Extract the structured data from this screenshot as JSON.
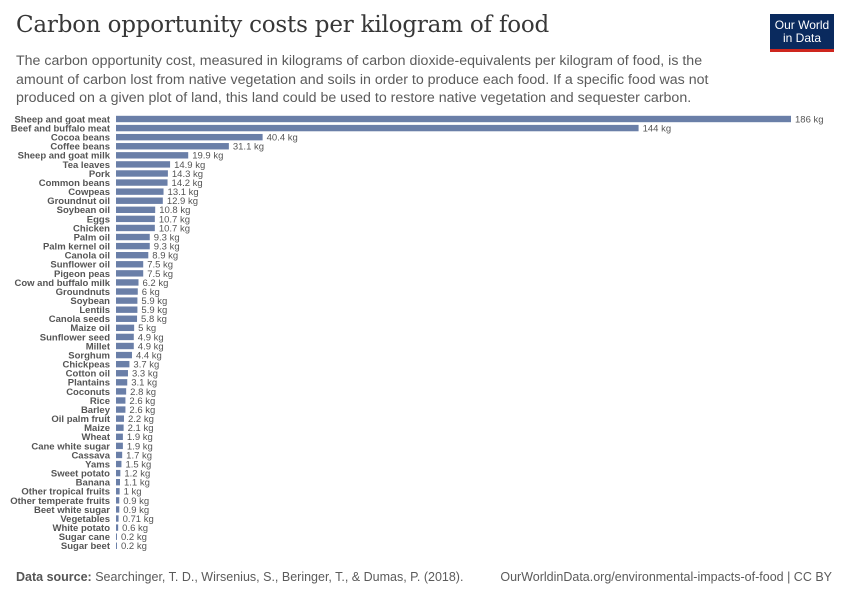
{
  "header": {
    "title": "Carbon opportunity costs per kilogram of food",
    "subtitle": "The carbon opportunity cost, measured in kilograms of carbon dioxide-equivalents per kilogram of food, is the amount of carbon lost from native vegetation and soils in order to produce each food. If a specific food was not produced on a given plot of land, this land could be used to restore native vegetation and sequester carbon.",
    "logo_line1": "Our World",
    "logo_line2": "in Data"
  },
  "footer": {
    "source_label": "Data source:",
    "source_text": "Searchinger, T. D., Wirsenius, S., Beringer, T., & Dumas, P. (2018).",
    "credit": "OurWorldinData.org/environmental-impacts-of-food | CC BY"
  },
  "colors": {
    "bar": "#6a7fa8",
    "logo_bg": "#0a2a5e",
    "logo_accent": "#ce261e"
  },
  "chart_data": {
    "type": "bar",
    "orientation": "horizontal",
    "categories": [
      "Sheep and goat meat",
      "Beef and buffalo meat",
      "Cocoa beans",
      "Coffee beans",
      "Sheep and goat milk",
      "Tea leaves",
      "Pork",
      "Common beans",
      "Cowpeas",
      "Groundnut oil",
      "Soybean oil",
      "Eggs",
      "Chicken",
      "Palm oil",
      "Palm kernel oil",
      "Canola oil",
      "Sunflower oil",
      "Pigeon peas",
      "Cow and buffalo milk",
      "Groundnuts",
      "Soybean",
      "Lentils",
      "Canola seeds",
      "Maize oil",
      "Sunflower seed",
      "Millet",
      "Sorghum",
      "Chickpeas",
      "Cotton oil",
      "Plantains",
      "Coconuts",
      "Rice",
      "Barley",
      "Oil palm fruit",
      "Maize",
      "Wheat",
      "Cane white sugar",
      "Cassava",
      "Yams",
      "Sweet potato",
      "Banana",
      "Other tropical fruits",
      "Other temperate fruits",
      "Beet white sugar",
      "Vegetables",
      "White potato",
      "Sugar cane",
      "Sugar beet"
    ],
    "values": [
      186,
      144,
      40.4,
      31.1,
      19.9,
      14.9,
      14.3,
      14.2,
      13.1,
      12.9,
      10.8,
      10.7,
      10.7,
      9.3,
      9.3,
      8.9,
      7.5,
      7.5,
      6.2,
      6,
      5.9,
      5.9,
      5.8,
      5,
      4.9,
      4.9,
      4.4,
      3.7,
      3.3,
      3.1,
      2.8,
      2.6,
      2.6,
      2.2,
      2.1,
      1.9,
      1.9,
      1.7,
      1.5,
      1.2,
      1.1,
      1,
      0.9,
      0.9,
      0.71,
      0.6,
      0.2,
      0.2
    ],
    "value_labels": [
      "186 kg",
      "144 kg",
      "40.4 kg",
      "31.1 kg",
      "19.9 kg",
      "14.9 kg",
      "14.3 kg",
      "14.2 kg",
      "13.1 kg",
      "12.9 kg",
      "10.8 kg",
      "10.7 kg",
      "10.7 kg",
      "9.3 kg",
      "9.3 kg",
      "8.9 kg",
      "7.5 kg",
      "7.5 kg",
      "6.2 kg",
      "6 kg",
      "5.9 kg",
      "5.9 kg",
      "5.8 kg",
      "5 kg",
      "4.9 kg",
      "4.9 kg",
      "4.4 kg",
      "3.7 kg",
      "3.3 kg",
      "3.1 kg",
      "2.8 kg",
      "2.6 kg",
      "2.6 kg",
      "2.2 kg",
      "2.1 kg",
      "1.9 kg",
      "1.9 kg",
      "1.7 kg",
      "1.5 kg",
      "1.2 kg",
      "1.1 kg",
      "1 kg",
      "0.9 kg",
      "0.9 kg",
      "0.71 kg",
      "0.6 kg",
      "0.2 kg",
      "0.2 kg"
    ],
    "unit": "kg",
    "xlim": [
      0,
      186
    ],
    "grid": false,
    "legend": "none"
  }
}
